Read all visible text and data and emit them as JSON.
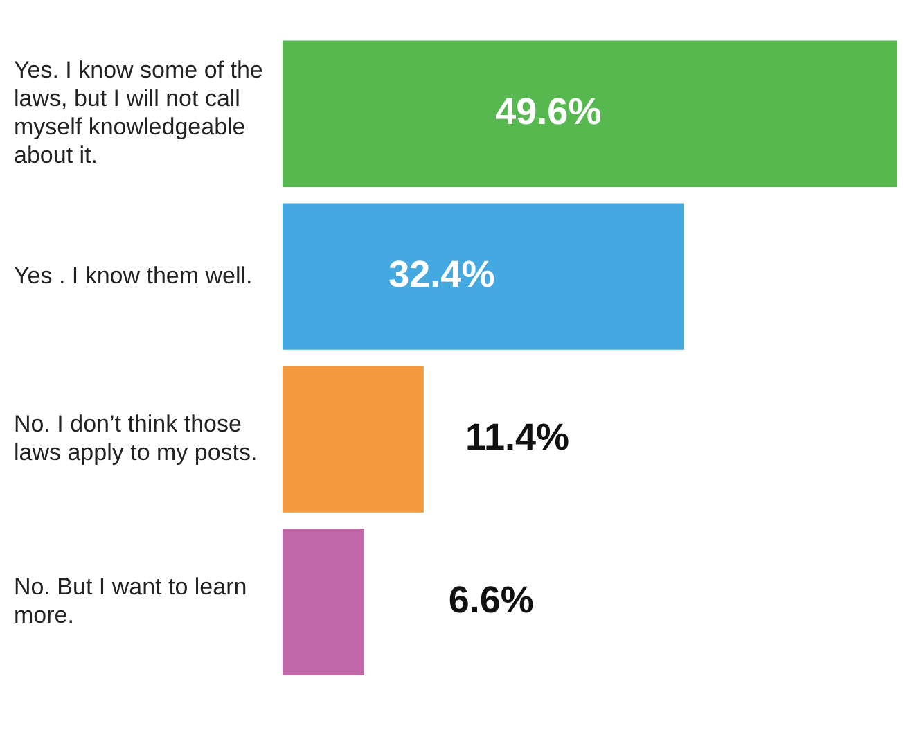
{
  "chart_data": {
    "type": "bar",
    "orientation": "horizontal",
    "tick_labels": "y",
    "categories": [
      "Yes. I know some of the laws, but I will not call myself knowledgeable about it.",
      "Yes . I know them well.",
      "No. I don’t think those laws apply to my posts.",
      "No. But I want to learn more."
    ],
    "values": [
      49.6,
      32.4,
      11.4,
      6.6
    ],
    "colors": [
      "#56b84f",
      "#45a9e1",
      "#f39a3f",
      "#c068a8"
    ],
    "value_labels": [
      "49.6%",
      "32.4%",
      "11.4%",
      "6.6%"
    ],
    "legend": false
  }
}
